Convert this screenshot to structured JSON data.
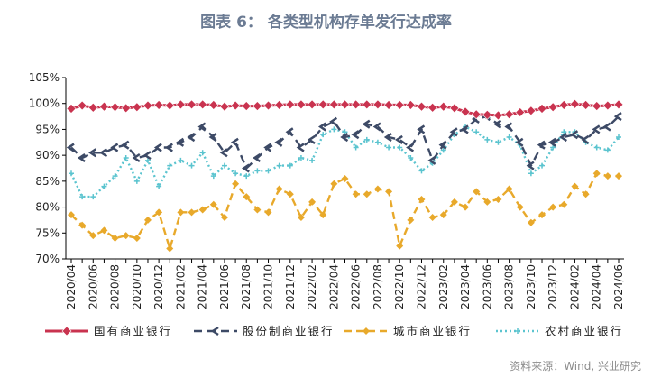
{
  "chart_data": {
    "type": "line",
    "title": "图表 6：  各类型机构存单发行达成率",
    "xlabel": "",
    "ylabel": "",
    "ylim": [
      70,
      105
    ],
    "yticks": [
      "70%",
      "75%",
      "80%",
      "85%",
      "90%",
      "95%",
      "100%",
      "105%"
    ],
    "x": [
      "2020/04",
      "2020/05",
      "2020/06",
      "2020/07",
      "2020/08",
      "2020/09",
      "2020/10",
      "2020/11",
      "2020/12",
      "2021/01",
      "2021/02",
      "2021/03",
      "2021/04",
      "2021/05",
      "2021/06",
      "2021/07",
      "2021/08",
      "2021/09",
      "2021/10",
      "2021/11",
      "2021/12",
      "2022/01",
      "2022/02",
      "2022/03",
      "2022/04",
      "2022/05",
      "2022/06",
      "2022/07",
      "2022/08",
      "2022/09",
      "2022/10",
      "2022/11",
      "2022/12",
      "2023/01",
      "2023/02",
      "2023/03",
      "2023/04",
      "2023/05",
      "2023/06",
      "2023/07",
      "2023/08",
      "2023/09",
      "2023/10",
      "2023/11",
      "2023/12",
      "2024/01",
      "2024/02",
      "2024/03",
      "2024/04",
      "2024/05",
      "2024/06"
    ],
    "xtick_labels": [
      "2020/04",
      "2020/06",
      "2020/08",
      "2020/10",
      "2020/12",
      "2021/02",
      "2021/04",
      "2021/06",
      "2021/08",
      "2021/10",
      "2021/12",
      "2022/02",
      "2022/04",
      "2022/06",
      "2022/08",
      "2022/10",
      "2022/12",
      "2023/02",
      "2023/04",
      "2023/06",
      "2023/08",
      "2023/10",
      "2023/12",
      "2024/02",
      "2024/04",
      "2024/06"
    ],
    "legend_position": "bottom",
    "grid": false,
    "series": [
      {
        "name": "国有商业银行",
        "color": "#c9334f",
        "style": "solid-diamond",
        "values": [
          99.0,
          99.6,
          99.2,
          99.4,
          99.3,
          99.1,
          99.3,
          99.6,
          99.7,
          99.6,
          99.8,
          99.8,
          99.8,
          99.7,
          99.4,
          99.6,
          99.5,
          99.5,
          99.6,
          99.7,
          99.8,
          99.8,
          99.8,
          99.8,
          99.8,
          99.8,
          99.8,
          99.8,
          99.8,
          99.7,
          99.7,
          99.7,
          99.4,
          99.2,
          99.4,
          99.1,
          98.4,
          97.9,
          97.8,
          97.7,
          97.9,
          98.3,
          98.6,
          99.0,
          99.3,
          99.7,
          99.9,
          99.7,
          99.5,
          99.6,
          99.8
        ]
      },
      {
        "name": "股份制商业银行",
        "color": "#3d4a66",
        "style": "dash-arrow",
        "values": [
          91.5,
          89.5,
          90.5,
          90.5,
          91.5,
          92.0,
          89.5,
          90.0,
          91.5,
          91.5,
          92.5,
          93.5,
          95.5,
          93.5,
          90.5,
          92.5,
          87.5,
          89.5,
          91.5,
          92.5,
          94.5,
          91.5,
          93.0,
          95.5,
          96.5,
          93.5,
          94.0,
          96.0,
          95.5,
          93.5,
          93.0,
          91.5,
          95.0,
          89.0,
          92.0,
          94.5,
          95.0,
          97.0,
          97.5,
          96.0,
          95.5,
          92.5,
          88.0,
          92.0,
          92.5,
          93.5,
          94.0,
          93.0,
          95.0,
          95.5,
          97.5
        ]
      },
      {
        "name": "城市商业银行",
        "color": "#e8a92b",
        "style": "dash-diamond",
        "values": [
          78.5,
          76.5,
          74.5,
          75.5,
          74.0,
          74.5,
          74.0,
          77.5,
          79.0,
          72.0,
          79.0,
          79.0,
          79.5,
          80.5,
          78.0,
          84.5,
          82.0,
          79.5,
          79.0,
          83.5,
          82.5,
          78.0,
          81.0,
          78.5,
          84.5,
          85.5,
          82.5,
          82.5,
          83.5,
          83.0,
          72.5,
          77.5,
          81.5,
          78.0,
          78.5,
          81.0,
          80.0,
          83.0,
          81.0,
          81.5,
          83.5,
          80.0,
          77.0,
          78.5,
          80.0,
          80.5,
          84.0,
          82.5,
          86.5,
          86.0,
          86.0
        ]
      },
      {
        "name": "农村商业银行",
        "color": "#5bc4cf",
        "style": "dotted",
        "values": [
          86.5,
          82.0,
          82.0,
          84.0,
          86.0,
          89.5,
          85.0,
          89.0,
          84.0,
          88.0,
          89.0,
          88.0,
          90.5,
          86.0,
          88.0,
          86.5,
          86.0,
          87.0,
          87.0,
          88.0,
          88.0,
          89.5,
          89.0,
          94.0,
          95.0,
          94.5,
          91.5,
          93.0,
          92.5,
          91.5,
          91.5,
          89.5,
          87.0,
          88.5,
          91.0,
          94.0,
          95.5,
          94.5,
          93.0,
          92.5,
          93.5,
          92.0,
          86.5,
          88.0,
          91.5,
          94.5,
          94.5,
          92.5,
          91.5,
          91.0,
          93.5
        ]
      }
    ]
  },
  "source": "资料来源：Wind, 兴业研究"
}
